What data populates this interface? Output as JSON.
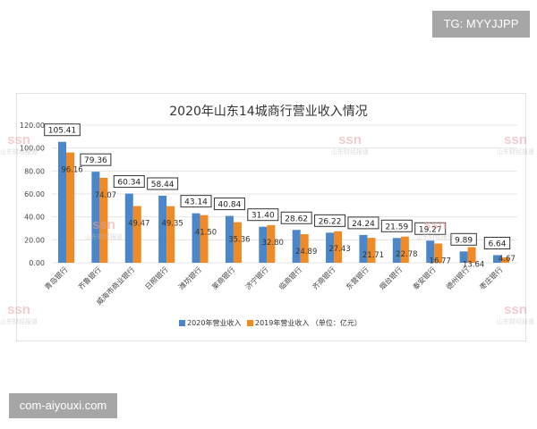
{
  "overlay_tag": "TG: MYYJJPP",
  "site_tag": "com-aiyouxi.com",
  "watermark": {
    "logo": "ssn",
    "text": "山东财经报道"
  },
  "chart_data": {
    "type": "bar",
    "title": "2020年山东14城商行营业收入情况",
    "categories": [
      "青岛银行",
      "齐鲁银行",
      "威海市商业银行",
      "日照银行",
      "潍坊银行",
      "莱商银行",
      "济宁银行",
      "临商银行",
      "齐商银行",
      "东营银行",
      "烟台银行",
      "泰安银行",
      "德州银行",
      "枣庄银行"
    ],
    "series": [
      {
        "name": "2020年营业收入",
        "color": "#4a86c8",
        "values": [
          105.41,
          79.36,
          60.34,
          58.44,
          43.14,
          40.84,
          31.4,
          28.62,
          26.22,
          24.24,
          21.59,
          19.27,
          9.89,
          6.64
        ]
      },
      {
        "name": "2019年营业收入",
        "color": "#f08a24",
        "values": [
          96.16,
          74.07,
          49.47,
          49.35,
          41.5,
          35.36,
          32.8,
          24.89,
          27.43,
          21.71,
          22.78,
          16.77,
          13.64,
          4.67
        ]
      }
    ],
    "unit_note": "（单位：亿元）",
    "yticks": [
      "0.00",
      "20.00",
      "40.00",
      "60.00",
      "80.00",
      "100.00",
      "120.00"
    ],
    "ylim": [
      0,
      120
    ],
    "grid": true,
    "legend": "bottom"
  }
}
